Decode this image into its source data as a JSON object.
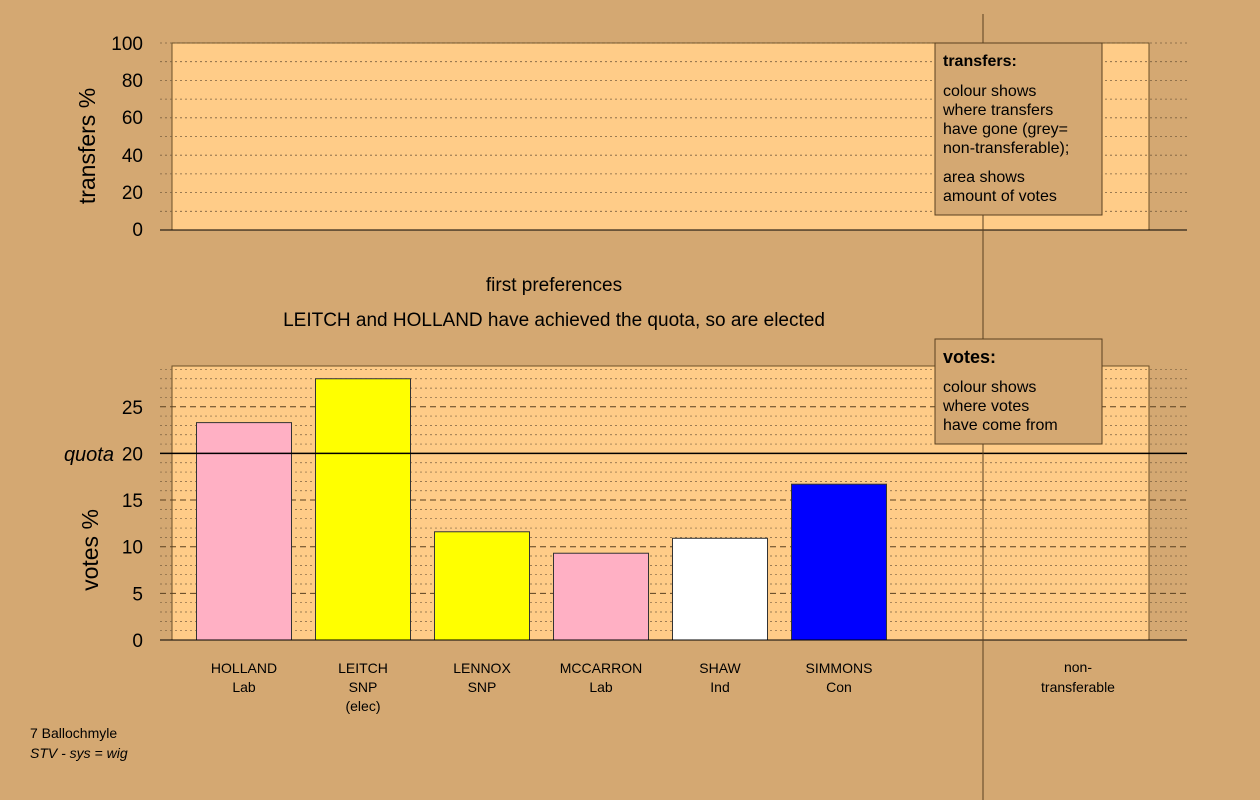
{
  "colors": {
    "background": "#D4A872",
    "plot_fill": "#FFCC88",
    "Lab": "#FFB0C4",
    "SNP": "#FFFF00",
    "Ind": "#FFFFFF",
    "Con": "#0000FF"
  },
  "transfers_panel": {
    "ylabel": "transfers %",
    "ticks": [
      "0",
      "20",
      "40",
      "60",
      "80",
      "100"
    ],
    "legend": {
      "title": "transfers:",
      "line1": "colour shows",
      "line2": "where transfers",
      "line3": "have gone (grey=",
      "line4": "non-transferable);",
      "line5": "area shows",
      "line6": "amount of votes"
    }
  },
  "stage": {
    "title": "first preferences",
    "subtitle": "LEITCH and HOLLAND have achieved the quota, so are elected"
  },
  "votes_panel": {
    "quota_label": "quota",
    "legend": {
      "title": "votes:",
      "line1": "colour shows",
      "line2": "where votes",
      "line3": "have come from"
    }
  },
  "footer": {
    "ward": "7 Ballochmyle",
    "system": "STV - sys = wig"
  },
  "chart_data": [
    {
      "type": "bar",
      "title": "first preferences",
      "subtitle": "LEITCH and HOLLAND have achieved the quota, so are elected",
      "ylabel": "votes %",
      "ylim": [
        0,
        29
      ],
      "yticks": [
        "0",
        "5",
        "10",
        "15",
        "20",
        "25"
      ],
      "quota": 20,
      "grid": true,
      "categories": [
        {
          "name": "HOLLAND",
          "party": "Lab",
          "note": ""
        },
        {
          "name": "LEITCH",
          "party": "SNP",
          "note": "(elec)"
        },
        {
          "name": "LENNOX",
          "party": "SNP",
          "note": ""
        },
        {
          "name": "MCCARRON",
          "party": "Lab",
          "note": ""
        },
        {
          "name": "SHAW",
          "party": "Ind",
          "note": ""
        },
        {
          "name": "SIMMONS",
          "party": "Con",
          "note": ""
        }
      ],
      "values": [
        23.3,
        28.0,
        11.6,
        9.3,
        10.9,
        16.7
      ],
      "extra_categories": [
        "non-",
        "transferable"
      ],
      "extra_values": [
        0
      ]
    },
    {
      "type": "bar",
      "ylabel": "transfers %",
      "ylim": [
        0,
        100
      ],
      "yticks": [
        "0",
        "20",
        "40",
        "60",
        "80",
        "100"
      ],
      "values": []
    }
  ]
}
